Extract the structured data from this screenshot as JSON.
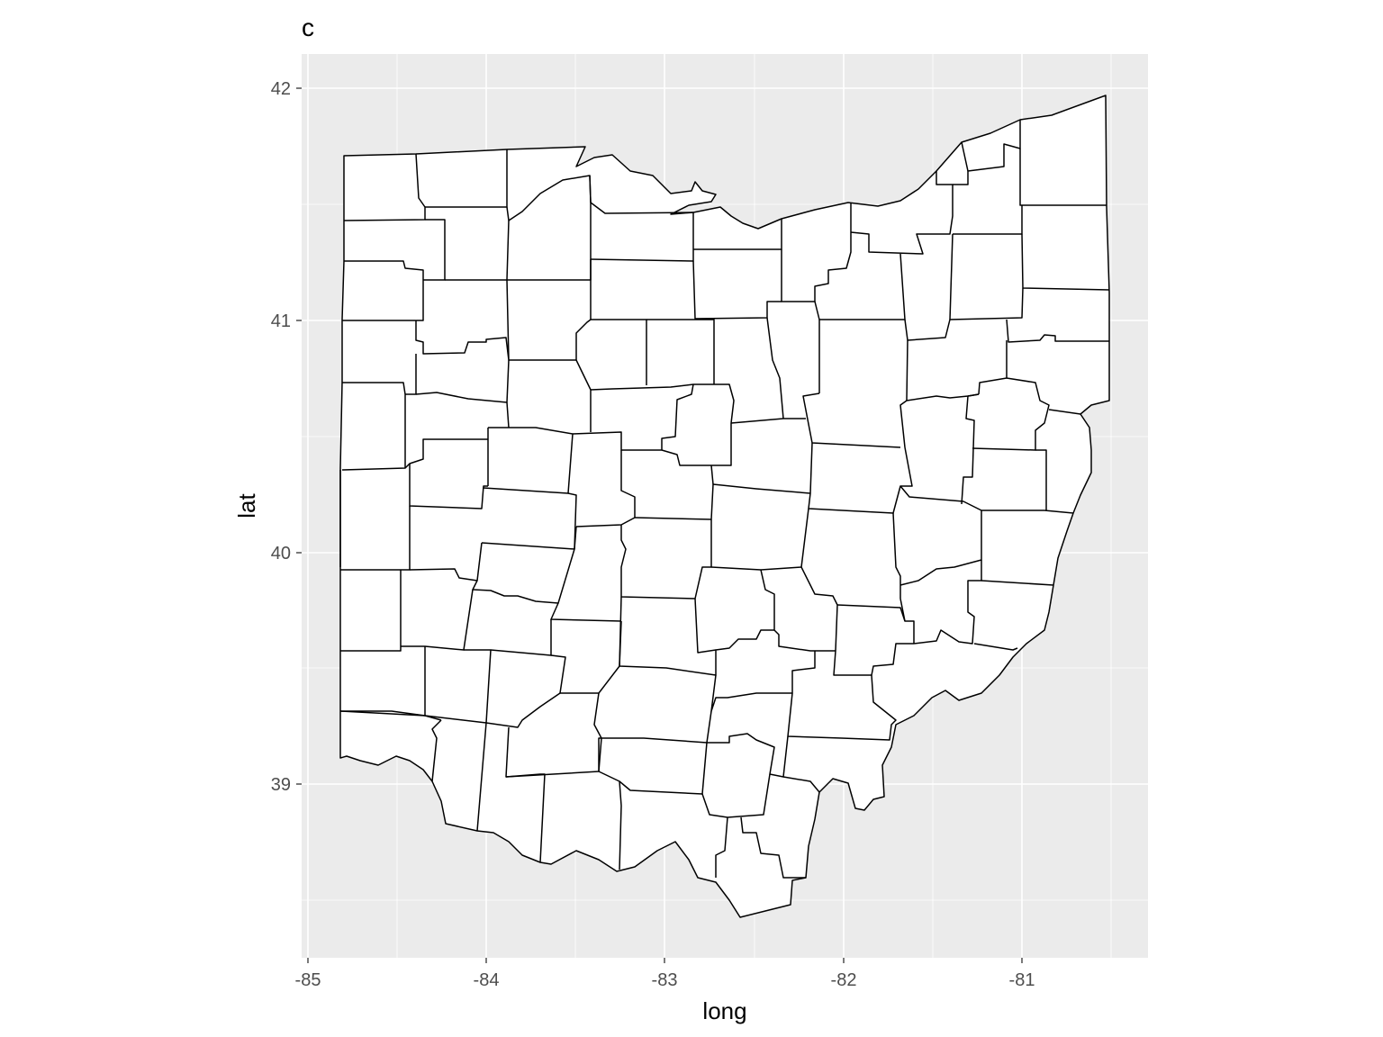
{
  "title": "c",
  "x_axis": {
    "label": "long",
    "ticks": [
      "-85",
      "-84",
      "-83",
      "-82",
      "-81"
    ]
  },
  "y_axis": {
    "label": "lat",
    "ticks": [
      "42",
      "41",
      "40",
      "39"
    ]
  },
  "map": {
    "region": "Ohio counties",
    "fill": "#ffffff",
    "outline": "#000000",
    "panel_background": "#ebebeb",
    "grid_color": "#ffffff"
  }
}
